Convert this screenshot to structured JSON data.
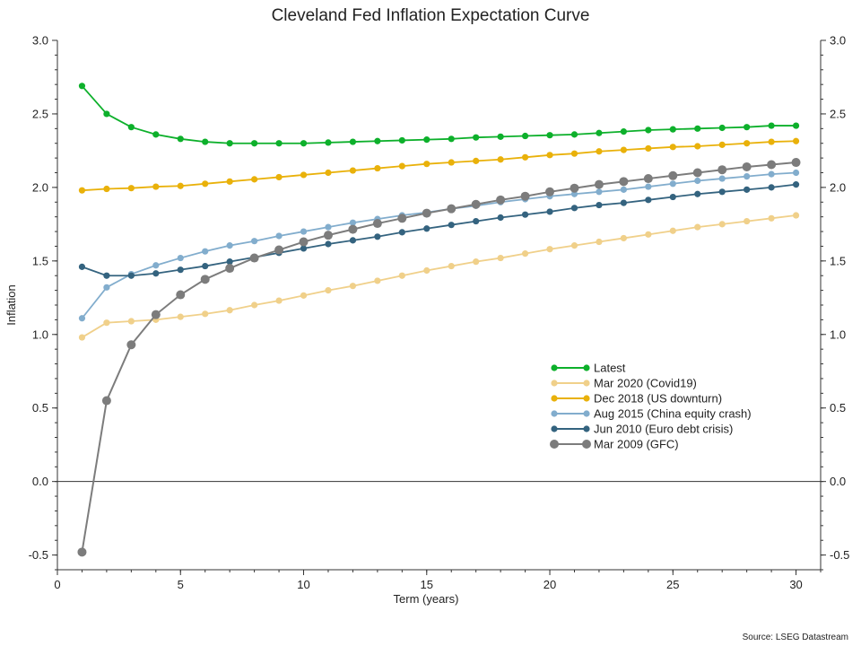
{
  "chart_data": {
    "type": "line",
    "title": "Cleveland Fed Inflation Expectation Curve",
    "xlabel": "Term (years)",
    "ylabel": "Inflation",
    "source": "Source: LSEG Datastream",
    "xlim": [
      0,
      31
    ],
    "ylim": [
      -0.6,
      3.0
    ],
    "xticks": [
      0,
      5,
      10,
      15,
      20,
      25,
      30
    ],
    "yticks": [
      -0.5,
      0.0,
      0.5,
      1.0,
      1.5,
      2.0,
      2.5,
      3.0
    ],
    "ytick_labels": [
      "-0.5",
      "0.0",
      "0.5",
      "1.0",
      "1.5",
      "2.0",
      "2.5",
      "3.0"
    ],
    "x": [
      1,
      2,
      3,
      4,
      5,
      6,
      7,
      8,
      9,
      10,
      11,
      12,
      13,
      14,
      15,
      16,
      17,
      18,
      19,
      20,
      21,
      22,
      23,
      24,
      25,
      26,
      27,
      28,
      29,
      30
    ],
    "grid": false,
    "zero_line": true,
    "legend_position": "lower-right inside",
    "series": [
      {
        "name": "Latest",
        "color": "#0db02b",
        "marker_size": "small",
        "values": [
          2.69,
          2.5,
          2.41,
          2.36,
          2.33,
          2.31,
          2.3,
          2.3,
          2.3,
          2.3,
          2.305,
          2.31,
          2.315,
          2.32,
          2.325,
          2.33,
          2.34,
          2.345,
          2.35,
          2.355,
          2.36,
          2.37,
          2.38,
          2.39,
          2.395,
          2.4,
          2.405,
          2.41,
          2.42,
          2.42
        ]
      },
      {
        "name": "Mar 2020 (Covid19)",
        "color": "#f0d08a",
        "marker_size": "small",
        "values": [
          0.98,
          1.08,
          1.09,
          1.1,
          1.12,
          1.14,
          1.165,
          1.2,
          1.23,
          1.265,
          1.3,
          1.33,
          1.365,
          1.4,
          1.435,
          1.465,
          1.495,
          1.52,
          1.55,
          1.58,
          1.605,
          1.63,
          1.655,
          1.68,
          1.705,
          1.73,
          1.75,
          1.77,
          1.79,
          1.81
        ]
      },
      {
        "name": "Dec 2018 (US downturn)",
        "color": "#e9b10a",
        "marker_size": "small",
        "values": [
          1.98,
          1.99,
          1.995,
          2.005,
          2.01,
          2.025,
          2.04,
          2.055,
          2.07,
          2.085,
          2.1,
          2.115,
          2.13,
          2.145,
          2.16,
          2.17,
          2.18,
          2.19,
          2.205,
          2.22,
          2.23,
          2.245,
          2.255,
          2.265,
          2.275,
          2.28,
          2.29,
          2.3,
          2.31,
          2.315
        ]
      },
      {
        "name": "Aug 2015 (China equity crash)",
        "color": "#82adcd",
        "marker_size": "small",
        "values": [
          1.11,
          1.32,
          1.41,
          1.47,
          1.52,
          1.565,
          1.605,
          1.635,
          1.67,
          1.7,
          1.73,
          1.76,
          1.785,
          1.81,
          1.83,
          1.855,
          1.875,
          1.9,
          1.92,
          1.94,
          1.955,
          1.97,
          1.985,
          2.005,
          2.025,
          2.045,
          2.06,
          2.075,
          2.09,
          2.1
        ]
      },
      {
        "name": "Jun 2010  (Euro debt crisis)",
        "color": "#34637f",
        "marker_size": "small",
        "values": [
          1.46,
          1.4,
          1.4,
          1.415,
          1.44,
          1.465,
          1.495,
          1.525,
          1.555,
          1.585,
          1.615,
          1.64,
          1.665,
          1.695,
          1.72,
          1.745,
          1.77,
          1.795,
          1.815,
          1.835,
          1.86,
          1.88,
          1.895,
          1.915,
          1.935,
          1.955,
          1.97,
          1.985,
          2.0,
          2.02
        ]
      },
      {
        "name": "Mar 2009 (GFC)",
        "color": "#7c7c7c",
        "marker_size": "large",
        "values": [
          -0.48,
          0.55,
          0.93,
          1.135,
          1.27,
          1.375,
          1.45,
          1.52,
          1.575,
          1.63,
          1.675,
          1.715,
          1.755,
          1.79,
          1.825,
          1.855,
          1.885,
          1.915,
          1.94,
          1.97,
          1.995,
          2.02,
          2.04,
          2.06,
          2.08,
          2.1,
          2.12,
          2.14,
          2.155,
          2.17
        ]
      }
    ]
  }
}
